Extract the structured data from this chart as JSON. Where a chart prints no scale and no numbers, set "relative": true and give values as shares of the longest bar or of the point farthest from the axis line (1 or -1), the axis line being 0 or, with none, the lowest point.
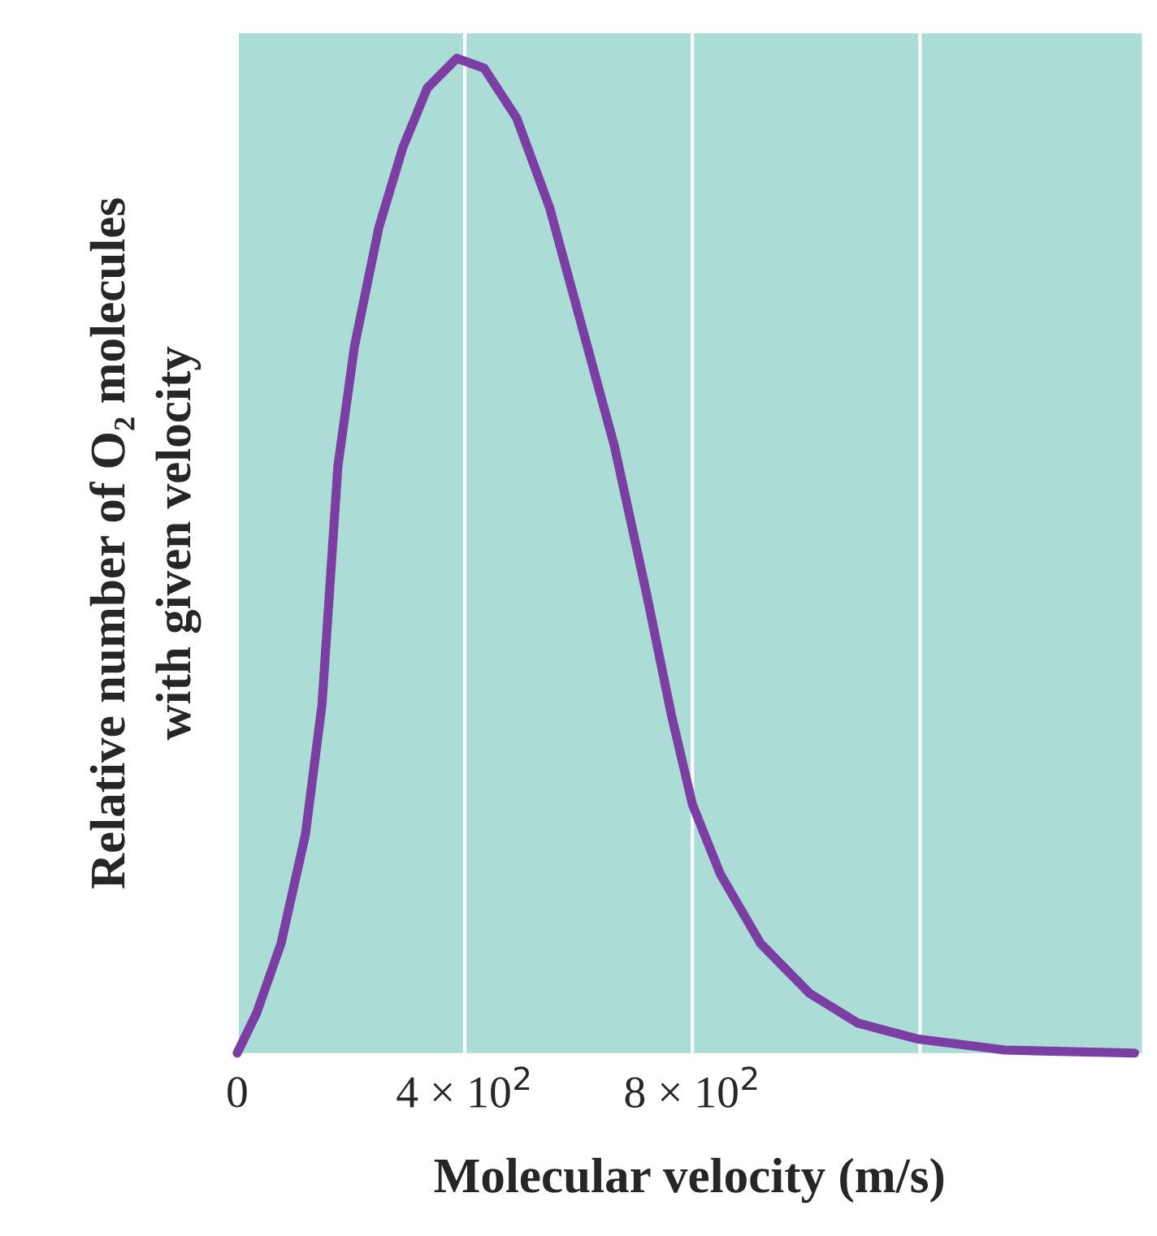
{
  "chart_data": {
    "type": "line",
    "relative": true,
    "xlabel": "Molecular velocity (m/s)",
    "ylabel": "Relative number of O₂ molecules\nwith given velocity",
    "xlim": [
      0,
      1590
    ],
    "xticks": [
      0,
      {
        "value": 400,
        "label": "4 × 10$^{2}$"
      },
      {
        "value": 800,
        "label": "8 × 10$^{2}$"
      },
      {
        "value": 1200,
        "label": null
      }
    ],
    "grid": "x",
    "marker": "none",
    "line_style": "solid",
    "series": [
      {
        "color": "#7b3fa3",
        "x": [
          0,
          34,
          77,
          120,
          149,
          163,
          177,
          206,
          249,
          291,
          334,
          386,
          434,
          491,
          549,
          606,
          663,
          720,
          763,
          800,
          849,
          920,
          1006,
          1091,
          1197,
          1349,
          1577
        ],
        "values": [
          0,
          0.04,
          0.11,
          0.22,
          0.35,
          0.47,
          0.59,
          0.71,
          0.83,
          0.91,
          0.97,
          1.0,
          0.99,
          0.94,
          0.85,
          0.73,
          0.61,
          0.46,
          0.34,
          0.25,
          0.18,
          0.11,
          0.06,
          0.03,
          0.014,
          0.003,
          0
        ]
      }
    ]
  }
}
